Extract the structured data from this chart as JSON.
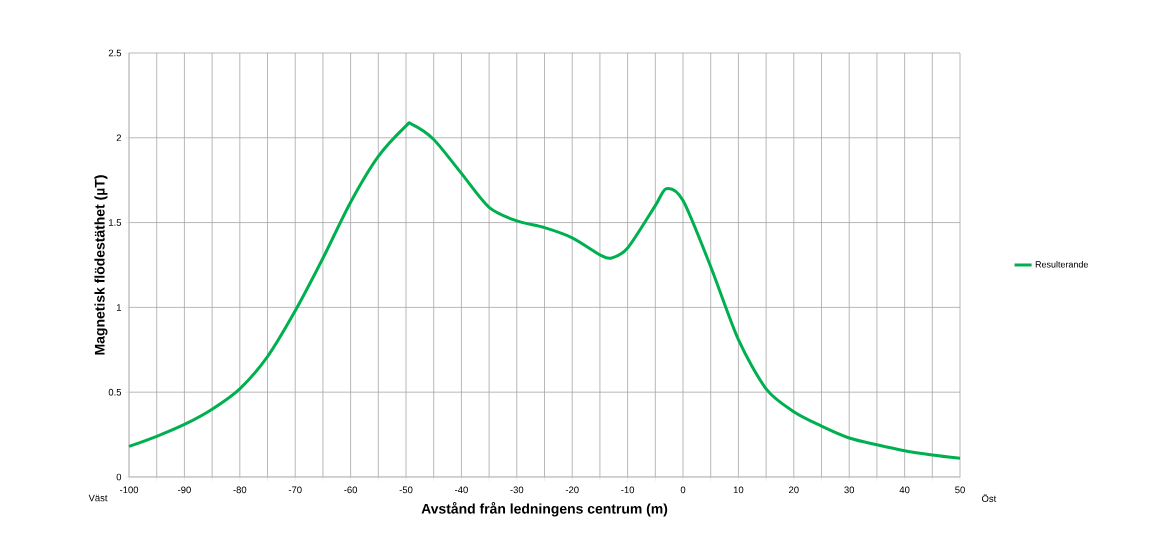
{
  "chart_data": {
    "type": "line",
    "xlabel": "Avstånd från ledningens centrum (m)",
    "ylabel": "Magnetisk flödestäthet (µT)",
    "annotations": [
      "Väst",
      "Öst"
    ],
    "xlim": [
      -100,
      50
    ],
    "ylim": [
      0,
      2.5
    ],
    "xticks": [
      -100,
      {
        "value": -95,
        "label": null
      },
      -90,
      {
        "value": -85,
        "label": null
      },
      -80,
      {
        "value": -75,
        "label": null
      },
      -70,
      {
        "value": -65,
        "label": null
      },
      -60,
      {
        "value": -55,
        "label": null
      },
      -50,
      {
        "value": -45,
        "label": null
      },
      -40,
      {
        "value": -35,
        "label": null
      },
      -30,
      {
        "value": -25,
        "label": null
      },
      -20,
      {
        "value": -15,
        "label": null
      },
      -10,
      {
        "value": -5,
        "label": null
      },
      0,
      {
        "value": 5,
        "label": null
      },
      10,
      {
        "value": 15,
        "label": null
      },
      20,
      {
        "value": 25,
        "label": null
      },
      30,
      {
        "value": 35,
        "label": null
      },
      40,
      {
        "value": 45,
        "label": null
      },
      50
    ],
    "yticks": [
      0,
      0.5,
      1,
      1.5,
      2,
      2.5
    ],
    "grid": true,
    "legend": "right",
    "marker": "none",
    "line_style": "solid",
    "x": [
      -100,
      -95,
      -90,
      -85,
      -80,
      -75,
      -70,
      -65,
      -60,
      -55,
      -50,
      -49,
      -45,
      -40,
      -35,
      -30,
      -25,
      -20,
      -15,
      -13,
      -10,
      -5,
      -3,
      0,
      5,
      10,
      15,
      20,
      25,
      30,
      35,
      40,
      45,
      50
    ],
    "series": [
      {
        "name": "Resulterande",
        "color": "#00b050",
        "values": [
          0.18,
          0.24,
          0.31,
          0.4,
          0.52,
          0.71,
          0.98,
          1.29,
          1.62,
          1.89,
          2.07,
          2.08,
          1.99,
          1.79,
          1.59,
          1.51,
          1.47,
          1.41,
          1.31,
          1.29,
          1.35,
          1.6,
          1.7,
          1.63,
          1.24,
          0.81,
          0.52,
          0.385,
          0.3,
          0.23,
          0.19,
          0.155,
          0.13,
          0.11
        ]
      }
    ]
  }
}
